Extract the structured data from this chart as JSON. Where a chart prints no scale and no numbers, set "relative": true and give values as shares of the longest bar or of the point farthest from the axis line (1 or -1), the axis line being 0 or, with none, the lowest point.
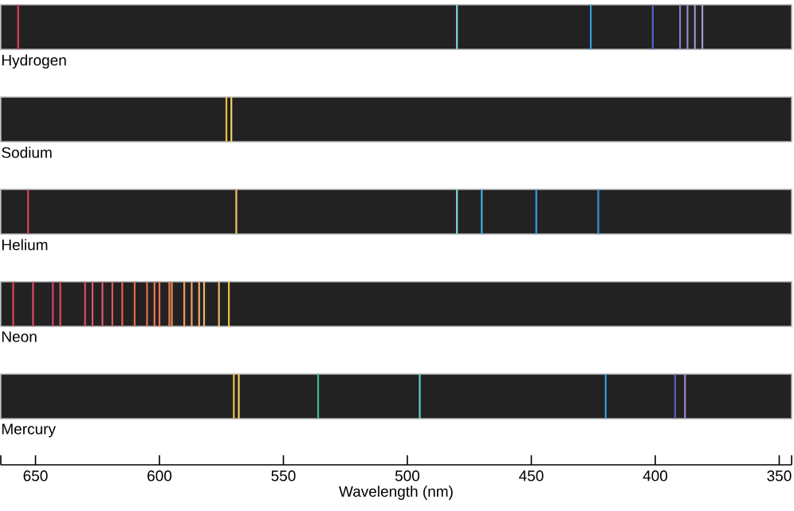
{
  "chart_data": [
    {
      "type": "bar",
      "title": "Hydrogen",
      "xlim": [
        664,
        345
      ],
      "tick_labels": false,
      "relative": true,
      "x": [
        657,
        480,
        426,
        401,
        390,
        387,
        384,
        381
      ],
      "values": [
        1,
        1,
        1,
        1,
        1,
        1,
        1,
        1
      ],
      "colors": [
        "#e0405a",
        "#80d4e4",
        "#30a0e0",
        "#5a60c8",
        "#8a78c8",
        "#9a88c8",
        "#a090c8",
        "#a898c8"
      ]
    },
    {
      "type": "bar",
      "title": "Sodium",
      "xlim": [
        664,
        345
      ],
      "tick_labels": false,
      "relative": true,
      "x": [
        573,
        571
      ],
      "values": [
        1,
        1
      ],
      "colors": [
        "#f0c040",
        "#f4d060"
      ]
    },
    {
      "type": "bar",
      "title": "Helium",
      "xlim": [
        664,
        345
      ],
      "tick_labels": false,
      "relative": true,
      "x": [
        653,
        569,
        480,
        470,
        448,
        423
      ],
      "values": [
        1,
        1,
        1,
        1,
        1,
        1
      ],
      "colors": [
        "#e0405a",
        "#f0c860",
        "#80d4e4",
        "#40b4e0",
        "#30a0e0",
        "#3098e0"
      ]
    },
    {
      "type": "bar",
      "title": "Neon",
      "xlim": [
        664,
        345
      ],
      "tick_labels": false,
      "relative": true,
      "x": [
        659,
        651,
        643,
        640,
        630,
        627,
        623,
        619,
        615,
        610,
        605,
        602,
        600,
        596,
        595,
        590,
        587,
        584,
        582,
        576,
        572
      ],
      "values": [
        1,
        1,
        1,
        1,
        1,
        1,
        1,
        1,
        1,
        1,
        1,
        1,
        1,
        1,
        1,
        1,
        1,
        1,
        1,
        1,
        1
      ],
      "colors": [
        "#e0405a",
        "#e04868",
        "#d84070",
        "#e04860",
        "#e04868",
        "#e05070",
        "#e05868",
        "#e05850",
        "#e86048",
        "#e86848",
        "#e87048",
        "#ec7850",
        "#e87060",
        "#f08050",
        "#f08858",
        "#f09858",
        "#f0a060",
        "#f0a868",
        "#f0b070",
        "#f0b860",
        "#f0c040"
      ]
    },
    {
      "type": "bar",
      "title": "Mercury",
      "xlabel": "Wavelength (nm)",
      "xlim": [
        664,
        345
      ],
      "tick_labels": "x",
      "relative": true,
      "xticks": [
        {
          "value": 664,
          "label": null
        },
        650,
        600,
        550,
        500,
        450,
        400,
        350,
        {
          "value": 345,
          "label": null
        }
      ],
      "x": [
        570,
        568,
        536,
        495,
        420,
        392,
        388
      ],
      "values": [
        1,
        1,
        1,
        1,
        1,
        1,
        1
      ],
      "colors": [
        "#f0c040",
        "#f4d060",
        "#40b890",
        "#60d0d0",
        "#30a0e0",
        "#5a60c8",
        "#9a88c8"
      ]
    }
  ]
}
